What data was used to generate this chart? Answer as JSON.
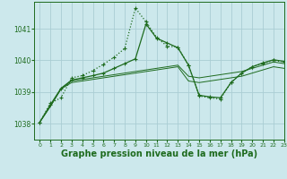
{
  "background_color": "#cce8ec",
  "grid_color": "#aacdd4",
  "line_color": "#1e6b1e",
  "xlabel": "Graphe pression niveau de la mer (hPa)",
  "xlabel_fontsize": 7,
  "xlim": [
    -0.5,
    23
  ],
  "ylim": [
    1037.5,
    1041.85
  ],
  "yticks": [
    1038,
    1039,
    1040,
    1041
  ],
  "xticks": [
    0,
    1,
    2,
    3,
    4,
    5,
    6,
    7,
    8,
    9,
    10,
    11,
    12,
    13,
    14,
    15,
    16,
    17,
    18,
    19,
    20,
    21,
    22,
    23
  ],
  "s1_x": [
    0,
    1,
    2,
    3,
    4,
    5,
    6,
    7,
    8,
    9,
    10,
    11,
    12,
    13,
    14,
    15,
    16,
    17,
    18,
    19,
    20,
    21,
    22,
    23
  ],
  "s1_y": [
    1038.05,
    1038.55,
    1039.1,
    1039.35,
    1039.4,
    1039.45,
    1039.5,
    1039.55,
    1039.6,
    1039.65,
    1039.7,
    1039.75,
    1039.8,
    1039.85,
    1039.5,
    1039.45,
    1039.5,
    1039.55,
    1039.6,
    1039.65,
    1039.75,
    1039.85,
    1039.95,
    1039.9
  ],
  "s2_x": [
    0,
    1,
    2,
    3,
    4,
    5,
    6,
    7,
    8,
    9,
    10,
    11,
    12,
    13,
    14,
    15,
    16,
    17,
    18,
    19,
    20,
    21,
    22,
    23
  ],
  "s2_y": [
    1038.05,
    1038.55,
    1039.1,
    1039.3,
    1039.35,
    1039.4,
    1039.45,
    1039.5,
    1039.55,
    1039.6,
    1039.65,
    1039.7,
    1039.75,
    1039.8,
    1039.35,
    1039.3,
    1039.35,
    1039.4,
    1039.45,
    1039.5,
    1039.6,
    1039.7,
    1039.8,
    1039.75
  ],
  "s3_x": [
    0,
    1,
    2,
    3,
    4,
    5,
    6,
    7,
    8,
    9,
    10,
    11,
    12,
    13,
    14,
    15,
    16,
    17,
    18,
    19,
    20,
    21,
    22,
    23
  ],
  "s3_y": [
    1038.05,
    1038.6,
    1039.12,
    1039.38,
    1039.45,
    1039.52,
    1039.6,
    1039.75,
    1039.9,
    1040.05,
    1041.15,
    1040.7,
    1040.55,
    1040.4,
    1039.85,
    1038.9,
    1038.85,
    1038.82,
    1039.3,
    1039.6,
    1039.8,
    1039.92,
    1040.02,
    1039.97
  ],
  "s4_x": [
    0,
    1,
    2,
    3,
    4,
    5,
    6,
    7,
    8,
    9,
    10,
    11,
    12,
    13,
    14,
    15,
    16,
    17,
    18,
    19,
    20,
    21,
    22,
    23
  ],
  "s4_y": [
    1038.05,
    1038.65,
    1038.82,
    1039.45,
    1039.52,
    1039.68,
    1039.88,
    1040.1,
    1040.38,
    1041.65,
    1041.22,
    1040.72,
    1040.45,
    1040.42,
    1039.85,
    1038.88,
    1038.82,
    1038.78,
    1039.3,
    1039.6,
    1039.8,
    1039.9,
    1040.0,
    1039.95
  ]
}
